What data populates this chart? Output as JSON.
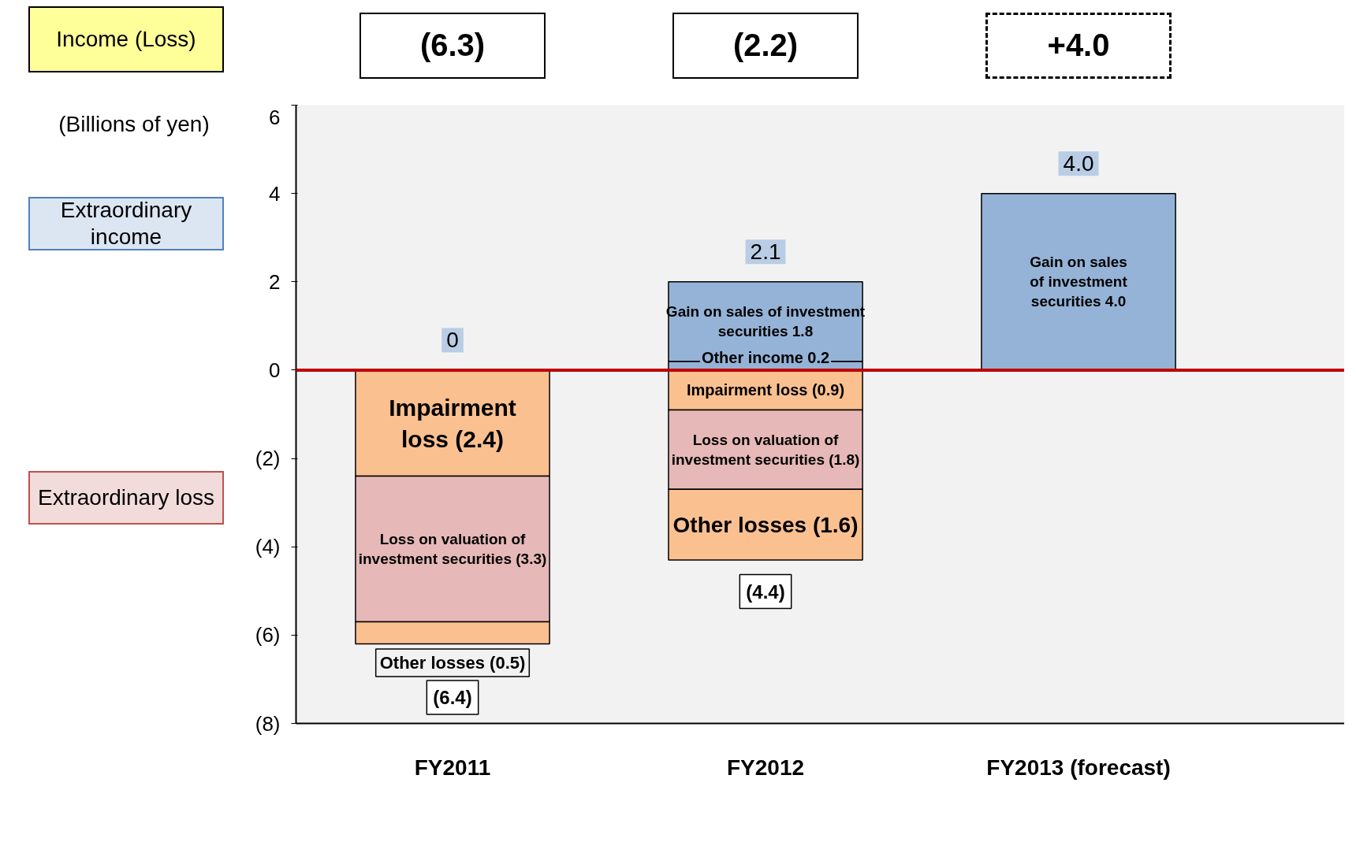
{
  "chart_data": {
    "type": "bar",
    "stacked": true,
    "ylabel": "(Billions of yen)",
    "categories": [
      "FY2011",
      "FY2012",
      "FY2013 (forecast)"
    ],
    "series": [
      {
        "color": "#95b3d7",
        "values": [
          null,
          0.2,
          null
        ],
        "value_labels": [
          null,
          "Other income 0.2",
          null
        ]
      },
      {
        "color": "#95b3d7",
        "values": [
          null,
          1.8,
          4.0
        ],
        "value_labels": [
          null,
          "Gain on sales of investment\nsecurities 1.8",
          "Gain on sales\nof investment\nsecurities 4.0"
        ]
      },
      {
        "color": "#fac090",
        "values": [
          -2.4,
          -0.9,
          null
        ],
        "value_labels": [
          "Impairment\nloss (2.4)",
          "Impairment loss (0.9)",
          null
        ]
      },
      {
        "color": "#e6b8b7",
        "values": [
          -3.3,
          -1.8,
          null
        ],
        "value_labels": [
          "Loss on valuation of\ninvestment securities (3.3)",
          "Loss on valuation of\ninvestment securities (1.8)",
          null
        ]
      },
      {
        "color": "#fac090",
        "values": [
          -0.5,
          -1.6,
          null
        ],
        "value_labels": [
          "Other losses (0.5)",
          "Other losses (1.6)",
          null
        ]
      }
    ],
    "ylim": [
      -8,
      6
    ],
    "yticks": [
      {
        "value": -8,
        "label": "(8)"
      },
      {
        "value": -6,
        "label": "(6)"
      },
      {
        "value": -4,
        "label": "(4)"
      },
      {
        "value": -2,
        "label": "(2)"
      },
      0,
      2,
      4,
      6
    ],
    "grid": false,
    "ref_lines": [
      {
        "axis": "y",
        "value": 0,
        "color": "#c00000"
      }
    ],
    "annotations": [
      "Income (Loss)",
      "Extraordinary income",
      "Extraordinary loss",
      "(6.3)",
      "(2.2)",
      "+4.0",
      "0",
      "2.1",
      "4.0",
      "(6.4)",
      "(4.4)"
    ]
  }
}
